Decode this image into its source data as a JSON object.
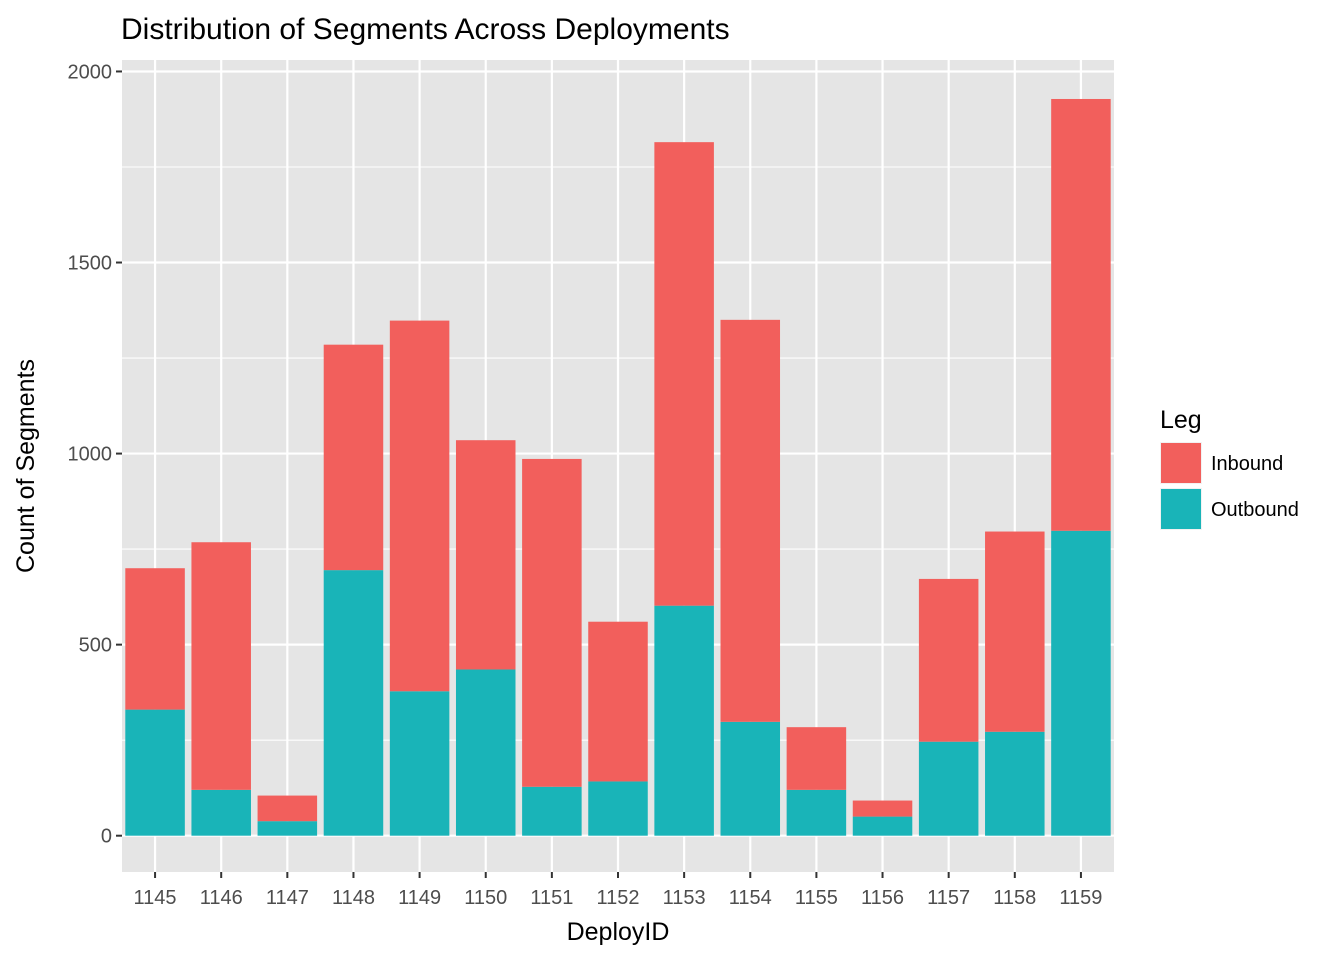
{
  "chart_data": {
    "type": "bar",
    "stacked": true,
    "title": "Distribution of Segments Across Deployments",
    "xlabel": "DeployID",
    "ylabel": "Count of Segments",
    "categories": [
      "1145",
      "1146",
      "1147",
      "1148",
      "1149",
      "1150",
      "1151",
      "1152",
      "1153",
      "1154",
      "1155",
      "1156",
      "1157",
      "1158",
      "1159"
    ],
    "series": [
      {
        "name": "Outbound",
        "color": "#19B4B8",
        "values": [
          330,
          120,
          38,
          695,
          378,
          435,
          128,
          142,
          602,
          298,
          120,
          50,
          246,
          272,
          798
        ]
      },
      {
        "name": "Inbound",
        "color": "#F25F5C",
        "values": [
          370,
          648,
          67,
          590,
          970,
          600,
          858,
          418,
          1213,
          1052,
          164,
          42,
          426,
          524,
          1130
        ]
      }
    ],
    "totals": [
      700,
      768,
      105,
      1285,
      1348,
      1035,
      986,
      560,
      1815,
      1350,
      284,
      92,
      672,
      796,
      1928
    ],
    "ylim": [
      -95,
      2030
    ],
    "yticks": [
      0,
      500,
      1000,
      1500,
      2000
    ],
    "grid": true,
    "legend": {
      "title": "Leg",
      "position": "right",
      "entries": [
        {
          "label": "Inbound",
          "color": "#F25F5C"
        },
        {
          "label": "Outbound",
          "color": "#19B4B8"
        }
      ]
    },
    "panel_background": "#E5E5E5",
    "grid_color": "#FFFFFF"
  }
}
